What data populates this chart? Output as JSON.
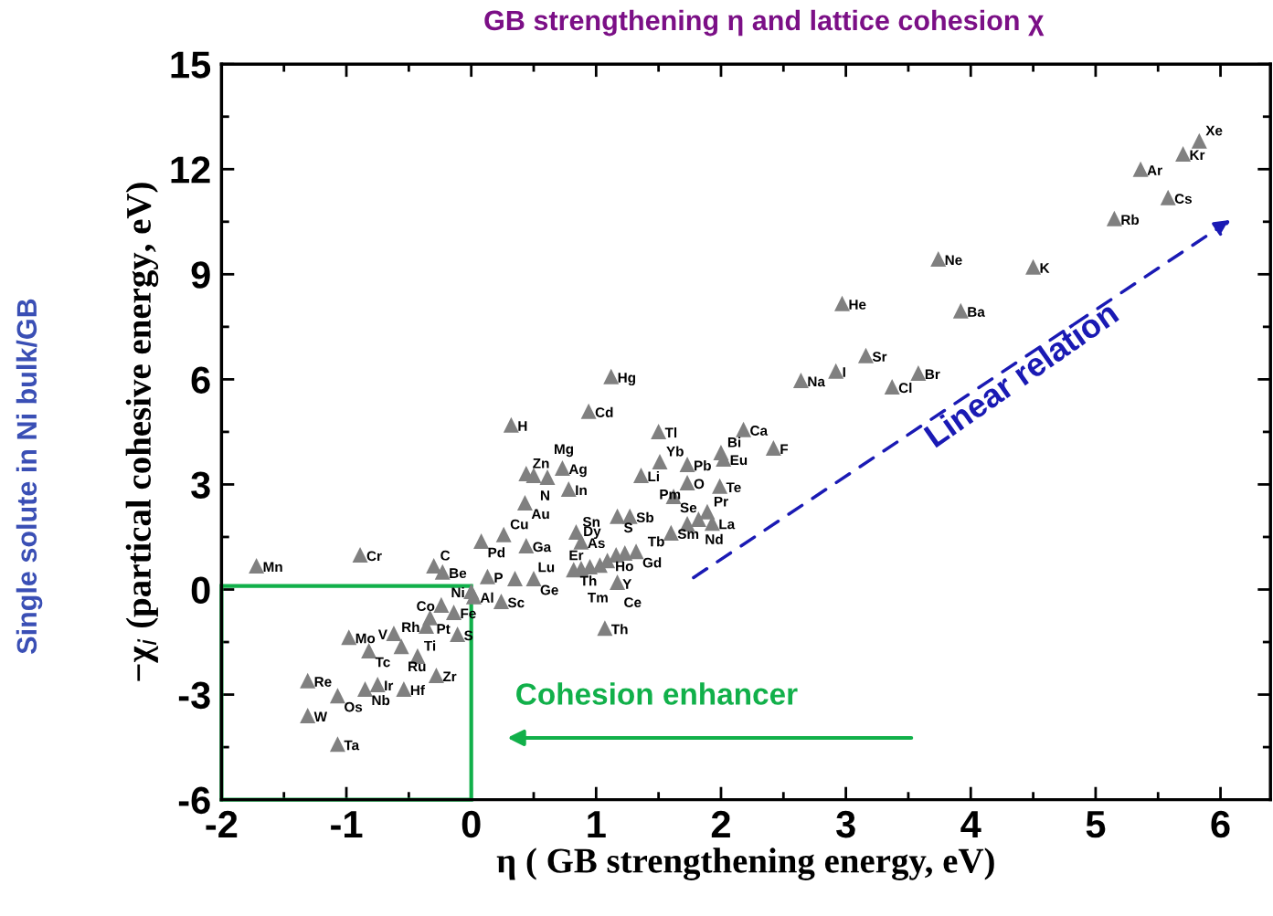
{
  "chart_data": {
    "type": "scatter",
    "title": "GB strengthening η and lattice cohesion χ",
    "xlabel": "η ( GB strengthening energy, eV)",
    "ylabel": "−χ$_{i}$ (partical cohesive energy, eV)",
    "xlim": [
      -2,
      6.4
    ],
    "ylim": [
      -6,
      15
    ],
    "xticks": [
      -2,
      -1,
      0,
      1,
      2,
      3,
      4,
      5,
      6
    ],
    "yticks": [
      -6,
      -3,
      0,
      3,
      6,
      9,
      12,
      15
    ],
    "grid": false,
    "marker": "triangle",
    "series": [
      {
        "color": "#808080",
        "x": [
          -1.72,
          -0.89,
          -0.3,
          -0.23,
          0.0,
          0.02,
          0.13,
          0.24,
          -0.24,
          -0.33,
          -0.14,
          -0.36,
          -0.11,
          -0.98,
          -0.62,
          -0.82,
          -0.56,
          -0.43,
          -0.28,
          -1.31,
          -1.07,
          -0.75,
          -0.85,
          -0.54,
          -1.31,
          -1.07,
          0.32,
          0.94,
          1.12,
          0.44,
          0.5,
          0.73,
          0.61,
          0.78,
          0.43,
          0.08,
          0.26,
          0.44,
          0.35,
          0.5,
          0.84,
          0.88,
          1.17,
          1.27,
          0.82,
          0.88,
          0.95,
          1.03,
          1.09,
          1.16,
          1.23,
          1.32,
          1.17,
          1.07,
          1.5,
          1.36,
          1.51,
          1.73,
          1.73,
          1.62,
          2.0,
          2.02,
          1.99,
          2.18,
          2.42,
          1.89,
          1.82,
          1.93,
          1.73,
          1.6,
          2.64,
          2.92,
          3.16,
          3.37,
          3.58,
          2.97,
          3.74,
          3.92,
          4.5,
          5.15,
          5.36,
          5.58,
          5.7,
          5.83
        ],
        "values": [
          0.68,
          0.99,
          0.68,
          0.5,
          -0.05,
          -0.2,
          0.37,
          -0.34,
          -0.44,
          -0.8,
          -0.65,
          -1.04,
          -1.28,
          -1.36,
          -1.25,
          -1.75,
          -1.62,
          -1.9,
          -2.45,
          -2.6,
          -3.03,
          -2.71,
          -2.84,
          -2.84,
          -3.6,
          -4.41,
          4.7,
          5.09,
          6.08,
          3.31,
          3.26,
          3.47,
          3.21,
          2.87,
          2.48,
          1.38,
          1.57,
          1.25,
          0.31,
          0.31,
          1.64,
          1.36,
          2.09,
          2.09,
          0.57,
          0.6,
          0.65,
          0.7,
          0.83,
          0.99,
          1.04,
          1.09,
          0.21,
          -1.1,
          4.51,
          3.26,
          3.65,
          3.57,
          3.05,
          2.66,
          3.91,
          3.73,
          2.95,
          4.57,
          4.04,
          2.22,
          2.01,
          1.9,
          1.88,
          1.62,
          5.97,
          6.24,
          6.68,
          5.79,
          6.18,
          8.17,
          9.44,
          7.96,
          9.21,
          10.59,
          12.0,
          11.19,
          12.44,
          12.81
        ]
      }
    ],
    "annotations": [
      {
        "text": "Mn",
        "x": -1.72,
        "y": 0.68
      },
      {
        "text": "Cr",
        "x": -0.89,
        "y": 0.99
      },
      {
        "text": "C",
        "x": -0.3,
        "y": 0.68
      },
      {
        "text": "Be",
        "x": -0.23,
        "y": 0.5
      },
      {
        "text": "Ni",
        "x": 0.0,
        "y": -0.05
      },
      {
        "text": "Al",
        "x": 0.02,
        "y": -0.2
      },
      {
        "text": "P",
        "x": 0.13,
        "y": 0.37
      },
      {
        "text": "Sc",
        "x": 0.24,
        "y": -0.34
      },
      {
        "text": "Co",
        "x": -0.24,
        "y": -0.44
      },
      {
        "text": "Pt",
        "x": -0.33,
        "y": -0.8
      },
      {
        "text": "Fe",
        "x": -0.14,
        "y": -0.65
      },
      {
        "text": "Rh",
        "x": -0.36,
        "y": -1.04
      },
      {
        "text": "S",
        "x": -0.11,
        "y": -1.28
      },
      {
        "text": "Mo",
        "x": -0.98,
        "y": -1.36
      },
      {
        "text": "V",
        "x": -0.62,
        "y": -1.25
      },
      {
        "text": "Tc",
        "x": -0.82,
        "y": -1.75
      },
      {
        "text": "Ru",
        "x": -0.56,
        "y": -1.62
      },
      {
        "text": "Ti",
        "x": -0.43,
        "y": -1.9
      },
      {
        "text": "Zr",
        "x": -0.28,
        "y": -2.45
      },
      {
        "text": "Re",
        "x": -1.31,
        "y": -2.6
      },
      {
        "text": "Os",
        "x": -1.07,
        "y": -3.03
      },
      {
        "text": "Ir",
        "x": -0.75,
        "y": -2.71
      },
      {
        "text": "Nb",
        "x": -0.85,
        "y": -2.84
      },
      {
        "text": "Hf",
        "x": -0.54,
        "y": -2.84
      },
      {
        "text": "W",
        "x": -1.31,
        "y": -3.6
      },
      {
        "text": "Ta",
        "x": -1.07,
        "y": -4.41
      },
      {
        "text": "H",
        "x": 0.32,
        "y": 4.7
      },
      {
        "text": "Cd",
        "x": 0.94,
        "y": 5.09
      },
      {
        "text": "Hg",
        "x": 1.12,
        "y": 6.08
      },
      {
        "text": "Zn",
        "x": 0.44,
        "y": 3.31
      },
      {
        "text": "N",
        "x": 0.5,
        "y": 3.26
      },
      {
        "text": "Ag",
        "x": 0.73,
        "y": 3.47
      },
      {
        "text": "Mg",
        "x": 0.61,
        "y": 3.21
      },
      {
        "text": "In",
        "x": 0.78,
        "y": 2.87
      },
      {
        "text": "Au",
        "x": 0.43,
        "y": 2.48
      },
      {
        "text": "Pd",
        "x": 0.08,
        "y": 1.38
      },
      {
        "text": "Cu",
        "x": 0.26,
        "y": 1.57
      },
      {
        "text": "Ga",
        "x": 0.44,
        "y": 1.25
      },
      {
        "text": "Lu",
        "x": 0.35,
        "y": 0.31
      },
      {
        "text": "Ge",
        "x": 0.5,
        "y": 0.31
      },
      {
        "text": "Sn",
        "x": 0.84,
        "y": 1.64
      },
      {
        "text": "As",
        "x": 0.88,
        "y": 1.36
      },
      {
        "text": "S",
        "x": 1.17,
        "y": 2.09
      },
      {
        "text": "Sb",
        "x": 1.27,
        "y": 2.09
      },
      {
        "text": "Th",
        "x": 0.82,
        "y": 0.57
      },
      {
        "text": "Tm",
        "x": 0.88,
        "y": 0.6
      },
      {
        "text": "Er",
        "x": 0.95,
        "y": 0.65
      },
      {
        "text": "Ho",
        "x": 1.03,
        "y": 0.7
      },
      {
        "text": "Dy",
        "x": 1.09,
        "y": 0.83
      },
      {
        "text": "Y",
        "x": 1.16,
        "y": 0.99
      },
      {
        "text": "Tb",
        "x": 1.23,
        "y": 1.04
      },
      {
        "text": "Gd",
        "x": 1.32,
        "y": 1.09
      },
      {
        "text": "Ce",
        "x": 1.17,
        "y": 0.21
      },
      {
        "text": "Th",
        "x": 1.07,
        "y": -1.1
      },
      {
        "text": "Tl",
        "x": 1.5,
        "y": 4.51
      },
      {
        "text": "Li",
        "x": 1.36,
        "y": 3.26
      },
      {
        "text": "Yb",
        "x": 1.51,
        "y": 3.65
      },
      {
        "text": "Pb",
        "x": 1.73,
        "y": 3.57
      },
      {
        "text": "O",
        "x": 1.73,
        "y": 3.05
      },
      {
        "text": "Se",
        "x": 1.62,
        "y": 2.66
      },
      {
        "text": "Bi",
        "x": 2.0,
        "y": 3.91
      },
      {
        "text": "Eu",
        "x": 2.02,
        "y": 3.73
      },
      {
        "text": "Te",
        "x": 1.99,
        "y": 2.95
      },
      {
        "text": "Ca",
        "x": 2.18,
        "y": 4.57
      },
      {
        "text": "F",
        "x": 2.42,
        "y": 4.04
      },
      {
        "text": "Pr",
        "x": 1.89,
        "y": 2.22
      },
      {
        "text": "Nd",
        "x": 1.82,
        "y": 2.01
      },
      {
        "text": "La",
        "x": 1.93,
        "y": 1.9
      },
      {
        "text": "Pm",
        "x": 1.73,
        "y": 1.88
      },
      {
        "text": "Sm",
        "x": 1.6,
        "y": 1.62
      },
      {
        "text": "Na",
        "x": 2.64,
        "y": 5.97
      },
      {
        "text": "I",
        "x": 2.92,
        "y": 6.24
      },
      {
        "text": "Sr",
        "x": 3.16,
        "y": 6.68
      },
      {
        "text": "Cl",
        "x": 3.37,
        "y": 5.79
      },
      {
        "text": "Br",
        "x": 3.58,
        "y": 6.18
      },
      {
        "text": "He",
        "x": 2.97,
        "y": 8.17
      },
      {
        "text": "Ne",
        "x": 3.74,
        "y": 9.44
      },
      {
        "text": "Ba",
        "x": 3.92,
        "y": 7.96
      },
      {
        "text": "K",
        "x": 4.5,
        "y": 9.21
      },
      {
        "text": "Rb",
        "x": 5.15,
        "y": 10.59
      },
      {
        "text": "Ar",
        "x": 5.36,
        "y": 12.0
      },
      {
        "text": "Cs",
        "x": 5.58,
        "y": 11.19
      },
      {
        "text": "Kr",
        "x": 5.7,
        "y": 12.44
      },
      {
        "text": "Xe",
        "x": 5.83,
        "y": 12.81
      },
      "Cohesion enhancer",
      "Linear relation",
      "Single solute in Ni bulk/GB"
    ]
  }
}
